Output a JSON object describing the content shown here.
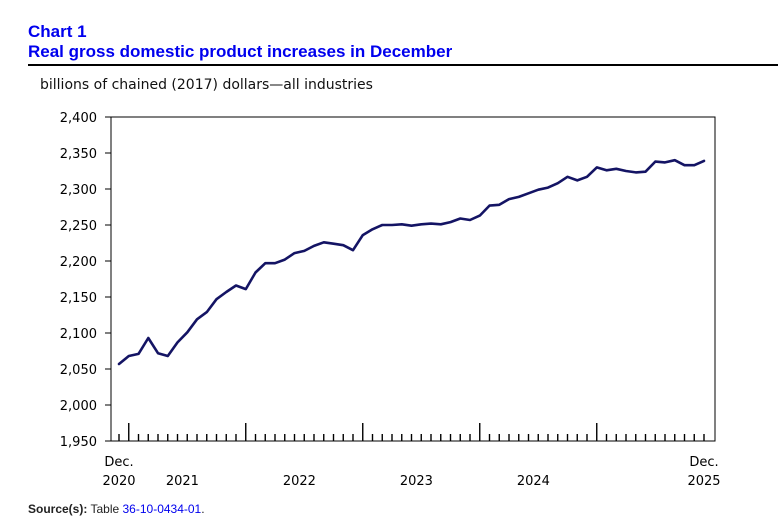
{
  "header": {
    "chart_label": "Chart 1",
    "chart_title": "Real gross domestic product increases in December"
  },
  "unit_label": "billions of chained (2017) dollars—all industries",
  "source": {
    "label": "Source(s):",
    "text": "Table",
    "link": "36-10-0434-01",
    "suffix": "."
  },
  "colors": {
    "line": "#141464",
    "title": "#0000ee"
  },
  "chart_data": {
    "type": "line",
    "title": "Real gross domestic product increases in December",
    "ylabel": "billions of chained (2017) dollars—all industries",
    "xlabel": "",
    "ylim": [
      1950,
      2400
    ],
    "yticks": [
      1950,
      2000,
      2050,
      2100,
      2150,
      2200,
      2250,
      2300,
      2350,
      2400
    ],
    "ytick_labels": [
      "1,950",
      "2,000",
      "2,050",
      "2,100",
      "2,150",
      "2,200",
      "2,250",
      "2,300",
      "2,350",
      "2,400"
    ],
    "x_start": "Dec. 2020",
    "x_end": "Dec. 2025",
    "x_period": "monthly",
    "x_labels": [
      {
        "index": 0,
        "line1": "Dec.",
        "line2": "2020"
      },
      {
        "index": 6.5,
        "line1": "",
        "line2": "2021"
      },
      {
        "index": 18.5,
        "line1": "",
        "line2": "2022"
      },
      {
        "index": 30.5,
        "line1": "",
        "line2": "2023"
      },
      {
        "index": 42.5,
        "line1": "",
        "line2": "2024"
      },
      {
        "index": 60,
        "line1": "Dec.",
        "line2": "2025"
      }
    ],
    "major_tick_indices": [
      1,
      13,
      25,
      37,
      49
    ],
    "series": [
      {
        "name": "Real GDP, all industries",
        "values": [
          2057,
          2068,
          2071,
          2093,
          2072,
          2068,
          2087,
          2101,
          2119,
          2129,
          2147,
          2157,
          2166,
          2161,
          2184,
          2197,
          2197,
          2202,
          2211,
          2214,
          2221,
          2226,
          2224,
          2222,
          2215,
          2236,
          2244,
          2250,
          2250,
          2251,
          2249,
          2251,
          2252,
          2251,
          2254,
          2259,
          2257,
          2263,
          2277,
          2278,
          2286,
          2289,
          2294,
          2299,
          2302,
          2308,
          2317,
          2312,
          2317,
          2330,
          2326,
          2328,
          2325,
          2323,
          2324,
          2338,
          2337,
          2340,
          2333,
          2333,
          2339
        ]
      }
    ]
  }
}
